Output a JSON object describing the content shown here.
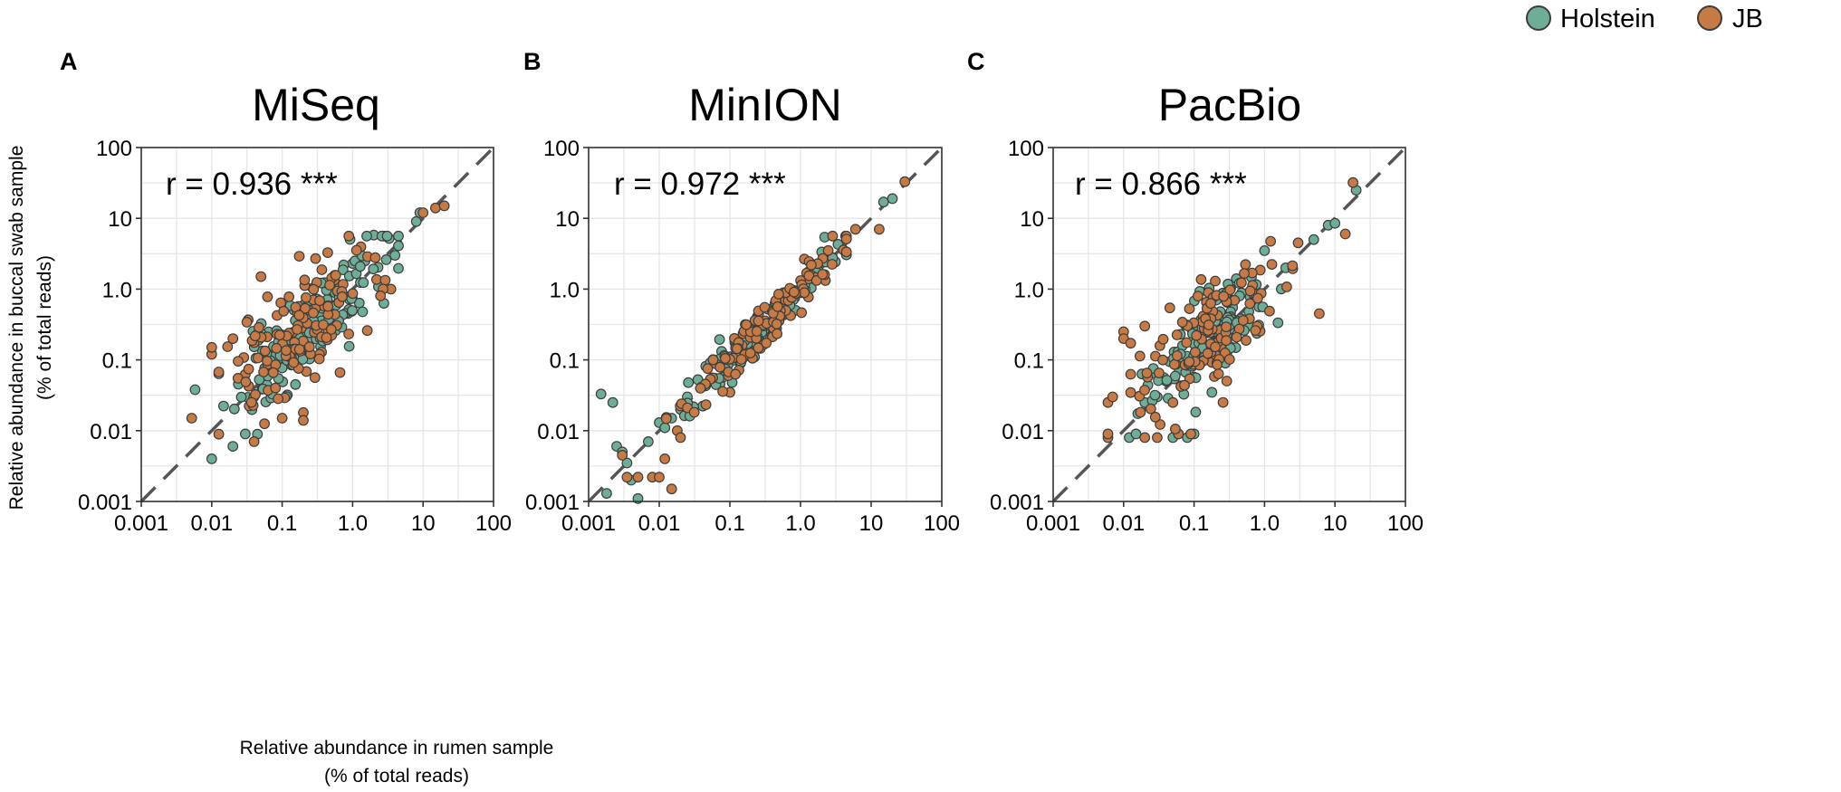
{
  "legend": {
    "entries": [
      {
        "label": "Holstein",
        "color": "#6fae96"
      },
      {
        "label": "JB",
        "color": "#c87a44"
      }
    ]
  },
  "axes": {
    "x_label_line1": "Relative abundance in rumen sample",
    "x_label_line2": "(% of total reads)",
    "y_label_line1": "Relative abundance in buccal swab sample",
    "y_label_line2": "(% of total reads)"
  },
  "chart_data": [
    {
      "type": "scatter",
      "panel": "A",
      "title": "MiSeq",
      "annotation": "r = 0.936 ***",
      "xscale": "log",
      "yscale": "log",
      "xlim": [
        0.001,
        100
      ],
      "ylim": [
        0.001,
        100
      ],
      "ticks": [
        "0.001",
        "0.01",
        "0.1",
        "1.0",
        "10",
        "100"
      ],
      "reference_line": "y = x",
      "series": [
        {
          "name": "Holstein",
          "seed": 11,
          "n": 150,
          "slope": 0.9,
          "spread": 0.3,
          "mean": -0.65,
          "sd": 0.5,
          "points": [
            [
              0.0058,
              0.038
            ],
            [
              0.01,
              0.004
            ],
            [
              0.02,
              0.006
            ],
            [
              0.03,
              0.009
            ],
            [
              1.0,
              2.3
            ],
            [
              1.5,
              2.5
            ],
            [
              2.0,
              5.8
            ],
            [
              3.0,
              2.6
            ],
            [
              4.0,
              3.0
            ],
            [
              8.0,
              9.0
            ],
            [
              9.0,
              12.0
            ]
          ]
        },
        {
          "name": "JB",
          "seed": 23,
          "n": 130,
          "slope": 0.8,
          "spread": 0.42,
          "mean": -0.75,
          "sd": 0.55,
          "points": [
            [
              0.0052,
              0.015
            ],
            [
              0.01,
              0.12
            ],
            [
              0.01,
              0.15
            ],
            [
              0.02,
              0.2
            ],
            [
              0.05,
              1.5
            ],
            [
              0.04,
              0.007
            ],
            [
              0.1,
              0.015
            ],
            [
              0.2,
              0.018
            ],
            [
              0.2,
              0.014
            ],
            [
              3.5,
              1.0
            ],
            [
              10.0,
              12.0
            ],
            [
              15.0,
              14.0
            ],
            [
              20.0,
              15.0
            ]
          ]
        }
      ]
    },
    {
      "type": "scatter",
      "panel": "B",
      "title": "MinION",
      "annotation": "r = 0.972 ***",
      "xscale": "log",
      "yscale": "log",
      "xlim": [
        0.001,
        100
      ],
      "ylim": [
        0.001,
        100
      ],
      "ticks": [
        "0.001",
        "0.01",
        "0.1",
        "1.0",
        "10",
        "100"
      ],
      "reference_line": "y = x",
      "series": [
        {
          "name": "Holstein",
          "seed": 37,
          "n": 120,
          "slope": 1.0,
          "spread": 0.14,
          "mean": -0.5,
          "sd": 0.55,
          "points": [
            [
              0.0015,
              0.033
            ],
            [
              0.0018,
              0.0013
            ],
            [
              0.0022,
              0.025
            ],
            [
              0.0025,
              0.006
            ],
            [
              0.003,
              0.005
            ],
            [
              0.0035,
              0.0035
            ],
            [
              0.004,
              0.002
            ],
            [
              0.005,
              0.0011
            ],
            [
              0.007,
              0.007
            ],
            [
              0.01,
              0.013
            ],
            [
              0.012,
              0.011
            ],
            [
              0.015,
              0.015
            ],
            [
              0.02,
              0.02
            ],
            [
              0.025,
              0.03
            ],
            [
              15.0,
              17.0
            ],
            [
              20.0,
              19.0
            ]
          ]
        },
        {
          "name": "JB",
          "seed": 53,
          "n": 120,
          "slope": 1.0,
          "spread": 0.16,
          "mean": -0.5,
          "sd": 0.55,
          "points": [
            [
              0.003,
              0.0045
            ],
            [
              0.0035,
              0.0022
            ],
            [
              0.005,
              0.0022
            ],
            [
              0.008,
              0.0022
            ],
            [
              0.01,
              0.0022
            ],
            [
              0.015,
              0.0015
            ],
            [
              0.012,
              0.004
            ],
            [
              0.018,
              0.01
            ],
            [
              0.02,
              0.008
            ],
            [
              6.0,
              7.0
            ],
            [
              13.0,
              7.0
            ],
            [
              30.0,
              33.0
            ]
          ]
        }
      ]
    },
    {
      "type": "scatter",
      "panel": "C",
      "title": "PacBio",
      "annotation": "r = 0.866 ***",
      "xscale": "log",
      "yscale": "log",
      "xlim": [
        0.001,
        100
      ],
      "ylim": [
        0.001,
        100
      ],
      "ticks": [
        "0.001",
        "0.01",
        "0.1",
        "1.0",
        "10",
        "100"
      ],
      "reference_line": "y = x",
      "series": [
        {
          "name": "Holstein",
          "seed": 71,
          "n": 130,
          "slope": 0.85,
          "spread": 0.3,
          "mean": -0.8,
          "sd": 0.45,
          "points": [
            [
              0.012,
              0.008
            ],
            [
              0.015,
              0.009
            ],
            [
              0.05,
              0.008
            ],
            [
              0.06,
              0.009
            ],
            [
              0.08,
              0.008
            ],
            [
              0.1,
              0.009
            ],
            [
              0.02,
              0.025
            ],
            [
              0.03,
              0.03
            ],
            [
              0.04,
              0.05
            ],
            [
              1.0,
              3.5
            ],
            [
              2.0,
              2.0
            ],
            [
              5.0,
              5.0
            ],
            [
              8.0,
              8.0
            ],
            [
              10.0,
              8.5
            ],
            [
              20.0,
              25.0
            ]
          ]
        },
        {
          "name": "JB",
          "seed": 89,
          "n": 120,
          "slope": 0.8,
          "spread": 0.36,
          "mean": -0.85,
          "sd": 0.5,
          "points": [
            [
              0.006,
              0.008
            ],
            [
              0.006,
              0.009
            ],
            [
              0.006,
              0.025
            ],
            [
              0.007,
              0.03
            ],
            [
              0.01,
              0.25
            ],
            [
              0.01,
              0.2
            ],
            [
              0.02,
              0.3
            ],
            [
              0.02,
              0.008
            ],
            [
              0.03,
              0.008
            ],
            [
              0.06,
              0.009
            ],
            [
              0.09,
              0.009
            ],
            [
              0.05,
              0.025
            ],
            [
              0.2,
              1.3
            ],
            [
              3.0,
              4.5
            ],
            [
              6.0,
              0.45
            ],
            [
              14.0,
              6.0
            ],
            [
              18.0,
              32.0
            ]
          ]
        }
      ]
    }
  ]
}
